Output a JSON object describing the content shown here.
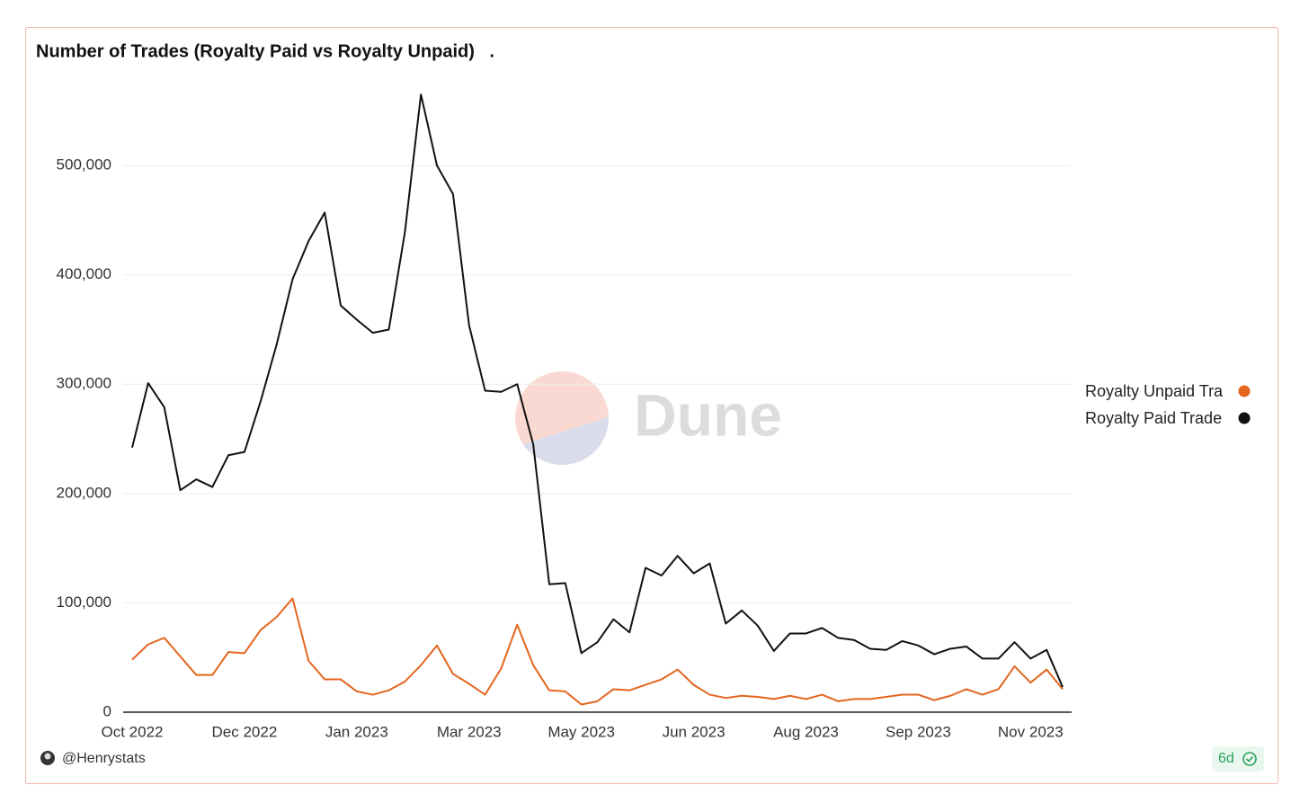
{
  "chart_data": {
    "type": "line",
    "title": "Number of Trades (Royalty Paid vs Royalty Unpaid)   .",
    "author": "@Henrystats",
    "age_badge": "6d",
    "watermark": "Dune",
    "categories": [
      "Oct 2022",
      null,
      null,
      null,
      null,
      null,
      null,
      "Dec 2022",
      null,
      null,
      null,
      null,
      null,
      null,
      "Jan 2023",
      null,
      null,
      null,
      null,
      null,
      null,
      "Mar 2023",
      null,
      null,
      null,
      null,
      null,
      null,
      "May 2023",
      null,
      null,
      null,
      null,
      null,
      null,
      "Jun 2023",
      null,
      null,
      null,
      null,
      null,
      null,
      "Aug 2023",
      null,
      null,
      null,
      null,
      null,
      null,
      "Sep 2023",
      null,
      null,
      null,
      null,
      null,
      null,
      "Nov 2023",
      null,
      null
    ],
    "series": [
      {
        "name": "Royalty Unpaid Tra",
        "color": "#e4661f",
        "values": [
          48000,
          62000,
          68000,
          51000,
          34000,
          34000,
          55000,
          54000,
          75000,
          87000,
          104000,
          47000,
          30000,
          30000,
          19000,
          16000,
          20000,
          28000,
          43000,
          61000,
          35000,
          26000,
          16000,
          40000,
          80000,
          43000,
          20000,
          19000,
          7000,
          10000,
          21000,
          20000,
          25000,
          30000,
          39000,
          25000,
          16000,
          13000,
          15000,
          14000,
          12000,
          15000,
          12000,
          16000,
          10000,
          12000,
          12000,
          14000,
          16000,
          16000,
          11000,
          15000,
          21000,
          16000,
          21000,
          42000,
          27000,
          39000,
          21000
        ]
      },
      {
        "name": "Royalty Paid Trade",
        "color": "#111111",
        "values": [
          242000,
          301000,
          279000,
          203000,
          213000,
          206000,
          235000,
          238000,
          284000,
          336000,
          396000,
          431000,
          457000,
          372000,
          359000,
          347000,
          350000,
          439000,
          565000,
          500000,
          474000,
          354000,
          294000,
          293000,
          300000,
          245000,
          117000,
          118000,
          54000,
          64000,
          85000,
          73000,
          132000,
          125000,
          143000,
          127000,
          136000,
          81000,
          93000,
          79000,
          56000,
          72000,
          72000,
          77000,
          68000,
          66000,
          58000,
          57000,
          65000,
          61000,
          53000,
          58000,
          60000,
          49000,
          49000,
          64000,
          49000,
          57000,
          23000
        ]
      }
    ],
    "ylim": [
      0,
      570000
    ],
    "yticks": [
      0,
      {
        "value": 100000,
        "label": "100,000"
      },
      {
        "value": 200000,
        "label": "200,000"
      },
      {
        "value": 300000,
        "label": "300,000"
      },
      {
        "value": 400000,
        "label": "400,000"
      },
      {
        "value": 500000,
        "label": "500,000"
      }
    ],
    "grid": true,
    "legend": "right"
  }
}
